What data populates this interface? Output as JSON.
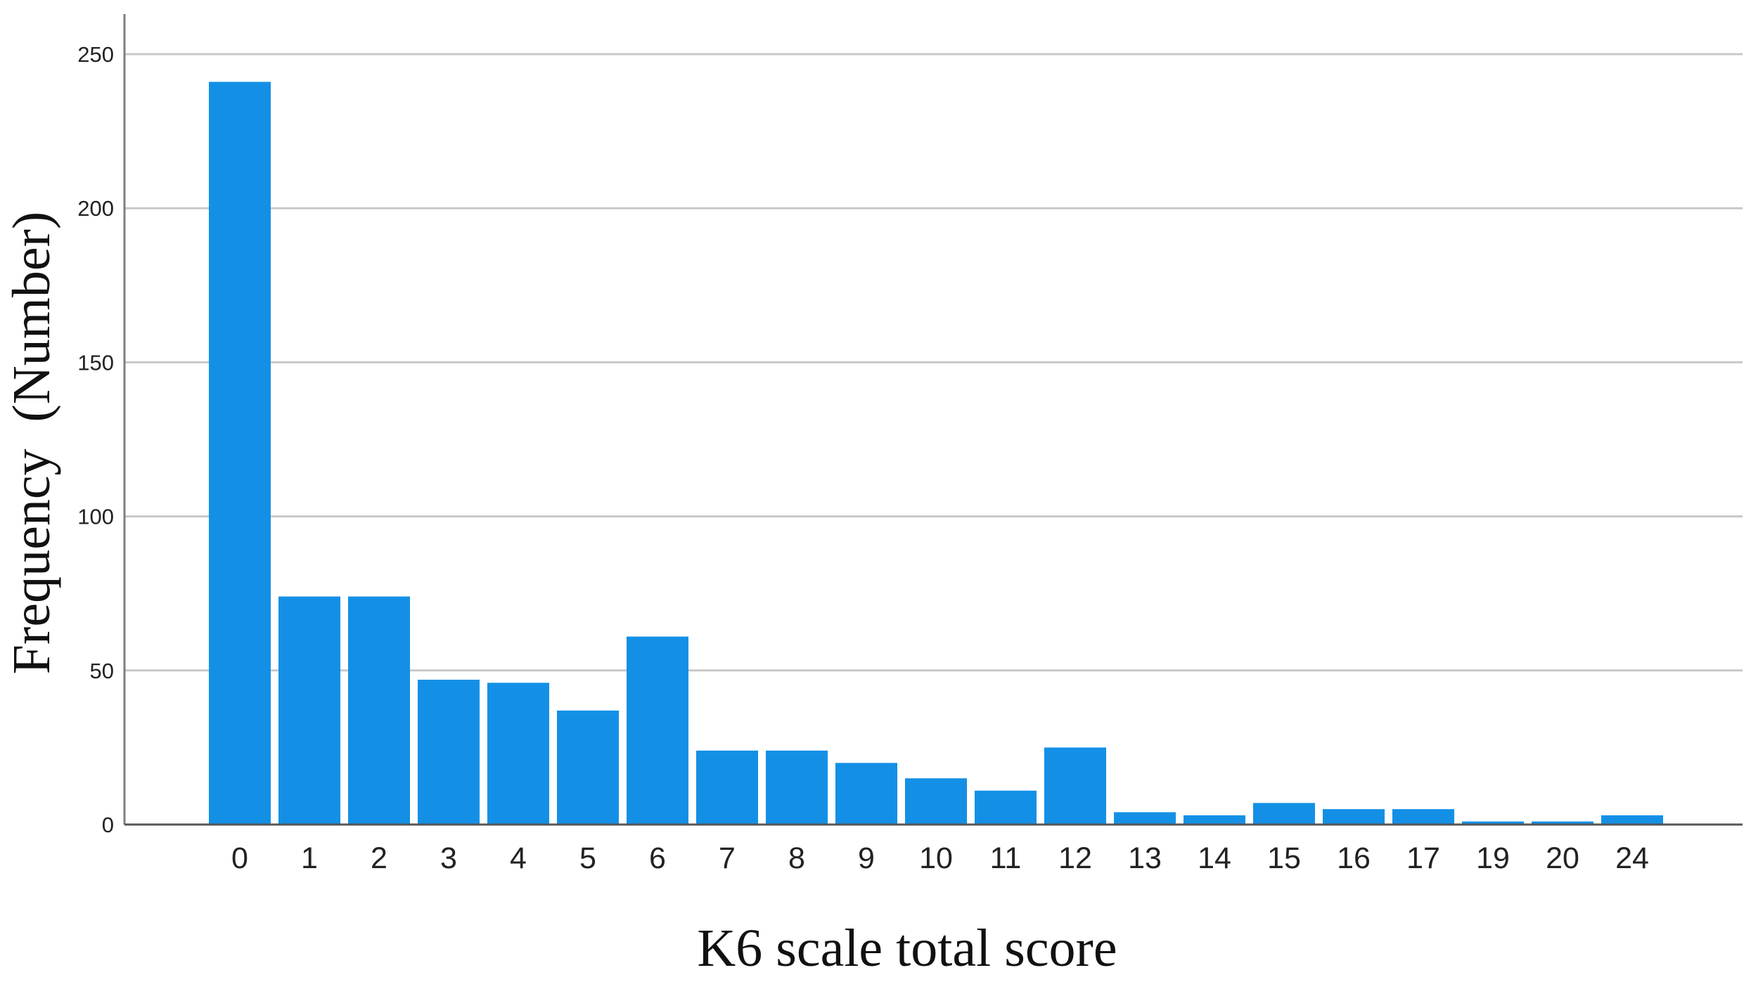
{
  "chart_data": {
    "type": "bar",
    "title": "",
    "xlabel": "K6 scale total score",
    "ylabel": "Frequency  (Number)",
    "categories": [
      "0",
      "1",
      "2",
      "3",
      "4",
      "5",
      "6",
      "7",
      "8",
      "9",
      "10",
      "11",
      "12",
      "13",
      "14",
      "15",
      "16",
      "17",
      "19",
      "20",
      "24"
    ],
    "values": [
      241,
      74,
      74,
      47,
      46,
      37,
      61,
      24,
      24,
      20,
      15,
      11,
      25,
      4,
      3,
      7,
      5,
      5,
      1,
      1,
      3
    ],
    "ylim": [
      0,
      250
    ],
    "yticks": [
      0,
      50,
      100,
      150,
      200,
      250
    ],
    "grid": true,
    "legend": "none",
    "bar_color": "#1390e6"
  }
}
